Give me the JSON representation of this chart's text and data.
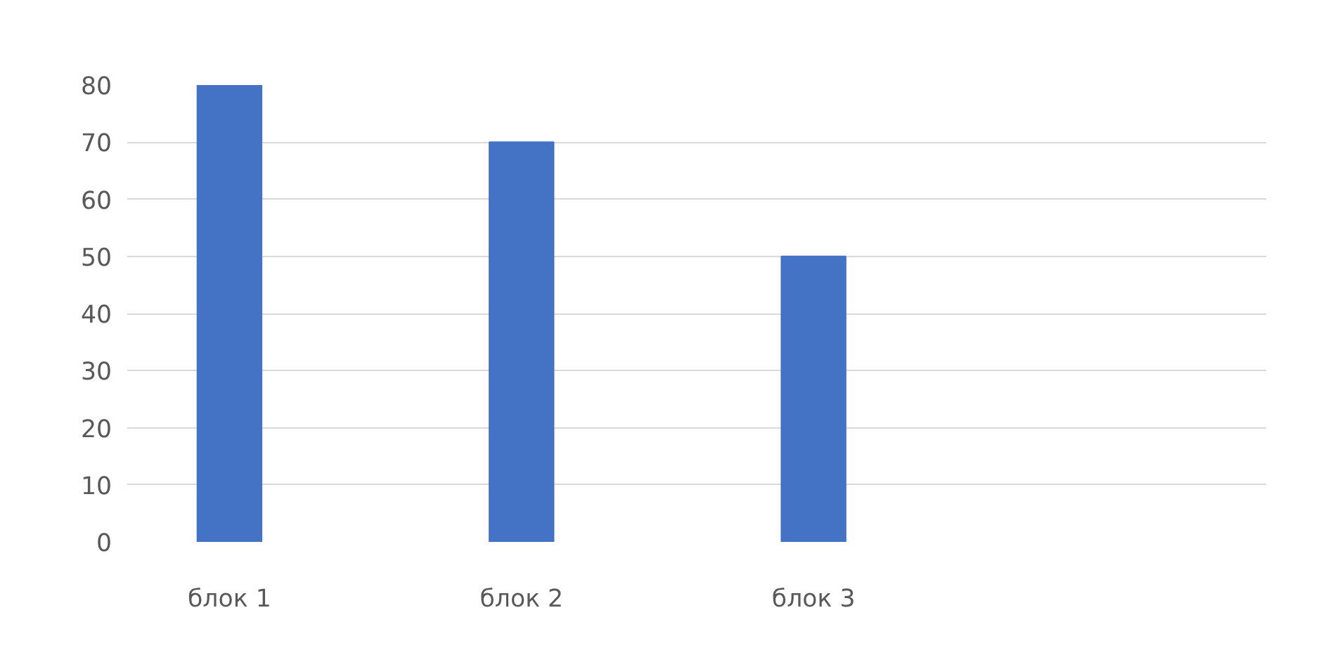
{
  "chart_data": {
    "type": "bar",
    "categories": [
      "блок 1",
      "блок 2",
      "блок 3",
      null
    ],
    "values": [
      80,
      70,
      50,
      null
    ],
    "color": "#4472c4",
    "ylim": [
      0,
      80
    ],
    "yticks": [
      0,
      10,
      20,
      30,
      40,
      50,
      60,
      70,
      80
    ],
    "grid": "y"
  }
}
